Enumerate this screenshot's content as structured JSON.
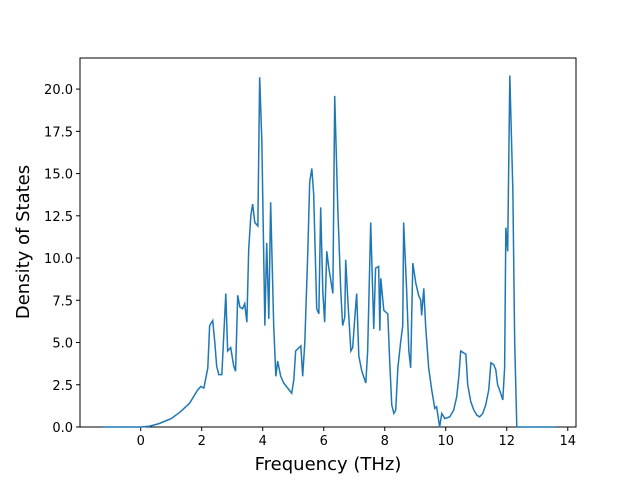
{
  "chart_data": {
    "type": "line",
    "xlabel": "Frequency (THz)",
    "ylabel": "Density of States",
    "x": [
      -1.25,
      -0.5,
      0,
      0.3,
      0.6,
      1.0,
      1.3,
      1.6,
      1.87,
      1.97,
      2.07,
      2.2,
      2.26,
      2.36,
      2.43,
      2.49,
      2.56,
      2.66,
      2.79,
      2.85,
      2.95,
      3.05,
      3.11,
      3.18,
      3.25,
      3.34,
      3.41,
      3.48,
      3.54,
      3.61,
      3.67,
      3.74,
      3.84,
      3.9,
      3.97,
      4.07,
      4.13,
      4.2,
      4.26,
      4.36,
      4.43,
      4.49,
      4.59,
      4.69,
      4.82,
      4.95,
      5.02,
      5.08,
      5.25,
      5.31,
      5.38,
      5.48,
      5.54,
      5.61,
      5.67,
      5.77,
      5.84,
      5.9,
      5.97,
      6.03,
      6.1,
      6.16,
      6.3,
      6.36,
      6.46,
      6.56,
      6.62,
      6.69,
      6.72,
      6.79,
      6.89,
      6.95,
      7.02,
      7.08,
      7.15,
      7.25,
      7.38,
      7.44,
      7.54,
      7.64,
      7.7,
      7.8,
      7.84,
      7.87,
      7.97,
      8.1,
      8.16,
      8.23,
      8.3,
      8.36,
      8.43,
      8.52,
      8.59,
      8.62,
      8.72,
      8.79,
      8.85,
      8.92,
      9.02,
      9.11,
      9.18,
      9.21,
      9.28,
      9.34,
      9.44,
      9.54,
      9.64,
      9.7,
      9.8,
      9.87,
      9.97,
      10.13,
      10.26,
      10.36,
      10.43,
      10.49,
      10.66,
      10.72,
      10.82,
      10.92,
      11.02,
      11.11,
      11.21,
      11.31,
      11.41,
      11.48,
      11.57,
      11.64,
      11.7,
      11.8,
      11.87,
      11.93,
      11.97,
      12.03,
      12.1,
      12.2,
      12.26,
      12.33,
      13.0,
      13.6
    ],
    "series": [
      {
        "color": "#1f77b4",
        "values": [
          0,
          0,
          0,
          0.05,
          0.2,
          0.5,
          0.9,
          1.4,
          2.2,
          2.4,
          2.3,
          3.5,
          6.0,
          6.3,
          5.0,
          3.6,
          3.1,
          3.1,
          7.9,
          4.5,
          4.7,
          3.6,
          3.3,
          7.8,
          7.1,
          7.0,
          7.3,
          6.2,
          10.5,
          12.5,
          13.2,
          12.1,
          11.9,
          20.7,
          17.0,
          6.0,
          10.9,
          6.4,
          13.3,
          6.0,
          3.0,
          3.9,
          3.0,
          2.6,
          2.3,
          2.0,
          2.8,
          4.5,
          4.8,
          3.0,
          5.0,
          10.5,
          14.5,
          15.3,
          13.8,
          7.0,
          6.7,
          13.0,
          8.0,
          6.2,
          10.4,
          9.5,
          7.9,
          19.6,
          13.0,
          8.0,
          6.0,
          6.5,
          9.9,
          7.5,
          4.5,
          4.7,
          6.5,
          7.9,
          4.2,
          3.3,
          2.6,
          4.5,
          12.1,
          5.8,
          9.4,
          9.5,
          5.7,
          8.8,
          6.9,
          6.7,
          4.0,
          1.3,
          0.8,
          1.0,
          3.5,
          5.0,
          6.0,
          12.1,
          8.0,
          4.5,
          3.5,
          9.7,
          8.5,
          7.8,
          7.5,
          6.6,
          8.2,
          6.0,
          3.5,
          2.2,
          1.1,
          1.2,
          0.0,
          0.8,
          0.5,
          0.6,
          1.0,
          1.8,
          3.0,
          4.5,
          4.3,
          2.5,
          1.5,
          1.0,
          0.7,
          0.6,
          0.8,
          1.3,
          2.2,
          3.8,
          3.7,
          3.4,
          2.5,
          2.0,
          1.6,
          3.5,
          11.8,
          10.4,
          20.8,
          14.0,
          5.0,
          0,
          0,
          0
        ]
      }
    ],
    "xlim": [
      -1.99,
      14.27
    ],
    "ylim": [
      0,
      21.84
    ],
    "xticks": [
      0,
      2,
      4,
      6,
      8,
      10,
      12,
      14
    ],
    "yticks": [
      {
        "value": 0,
        "label": "0.0"
      },
      {
        "value": 2.5,
        "label": "2.5"
      },
      {
        "value": 5,
        "label": "5.0"
      },
      {
        "value": 7.5,
        "label": "7.5"
      },
      {
        "value": 10,
        "label": "10.0"
      },
      {
        "value": 12.5,
        "label": "12.5"
      },
      {
        "value": 15,
        "label": "15.0"
      },
      {
        "value": 17.5,
        "label": "17.5"
      },
      {
        "value": 20,
        "label": "20.0"
      }
    ]
  }
}
